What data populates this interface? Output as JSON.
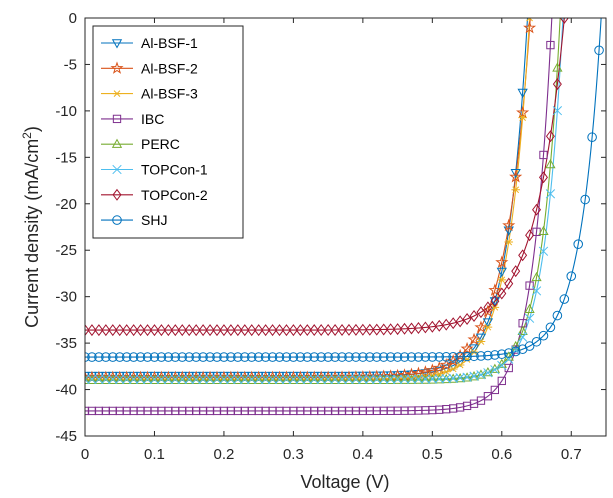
{
  "chart_data": {
    "type": "line",
    "xlabel": "Voltage (V)",
    "ylabel_main": "Current density (mA/cm",
    "ylabel_sup": "2",
    "ylabel_close": ")",
    "xlim": [
      0,
      0.75
    ],
    "ylim": [
      -45,
      0
    ],
    "xticks": [
      0,
      0.1,
      0.2,
      0.3,
      0.4,
      0.5,
      0.6,
      0.7
    ],
    "yticks": [
      0,
      -5,
      -10,
      -15,
      -20,
      -25,
      -30,
      -35,
      -40,
      -45
    ],
    "xtick_labels": [
      "0",
      "0.1",
      "0.2",
      "0.3",
      "0.4",
      "0.5",
      "0.6",
      "0.7"
    ],
    "ytick_labels": [
      "0",
      "-5",
      "-10",
      "-15",
      "-20",
      "-25",
      "-30",
      "-35",
      "-40",
      "-45"
    ],
    "grid": false,
    "legend_position": "top-left",
    "series": [
      {
        "name": "Al-BSF-1",
        "color": "#0072BD",
        "marker": "triangle-down",
        "jsc": 38.5,
        "voc": 0.637,
        "knee": 0.03
      },
      {
        "name": "Al-BSF-2",
        "color": "#D95319",
        "marker": "star",
        "jsc": 38.7,
        "voc": 0.641,
        "knee": 0.036
      },
      {
        "name": "Al-BSF-3",
        "color": "#EDB120",
        "marker": "asterisk",
        "jsc": 38.9,
        "voc": 0.64,
        "knee": 0.031
      },
      {
        "name": "IBC",
        "color": "#7E2F8E",
        "marker": "square",
        "jsc": 42.3,
        "voc": 0.672,
        "knee": 0.028
      },
      {
        "name": "PERC",
        "color": "#77AC30",
        "marker": "triangle-up",
        "jsc": 39.0,
        "voc": 0.684,
        "knee": 0.027
      },
      {
        "name": "TOPCon-1",
        "color": "#4DBEEE",
        "marker": "x",
        "jsc": 38.9,
        "voc": 0.688,
        "knee": 0.027
      },
      {
        "name": "TOPCon-2",
        "color": "#A2142F",
        "marker": "diamond",
        "jsc": 33.6,
        "voc": 0.69,
        "knee": 0.042
      },
      {
        "name": "SHJ",
        "color": "#0072BD",
        "marker": "circle",
        "jsc": 36.5,
        "voc": 0.743,
        "knee": 0.03
      }
    ]
  }
}
